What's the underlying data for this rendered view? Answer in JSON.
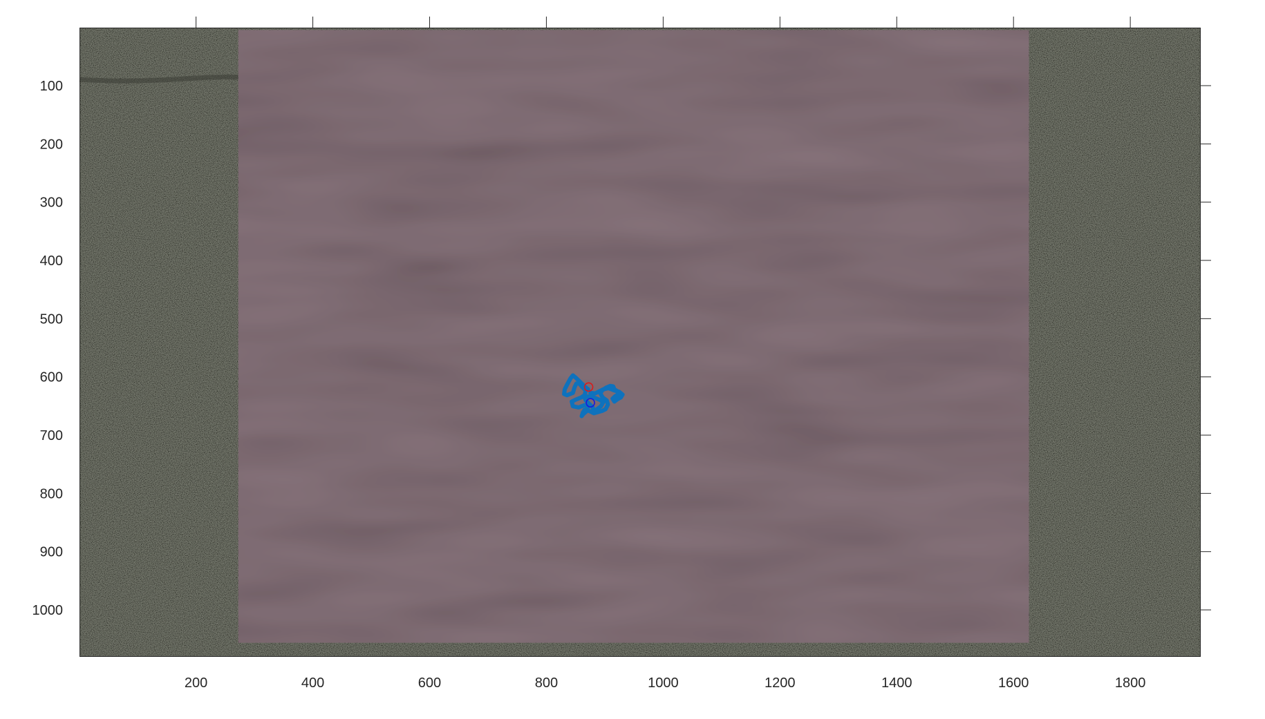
{
  "chart_data": {
    "type": "scatter",
    "title": "",
    "xlabel": "",
    "ylabel": "",
    "xlim": [
      1,
      1920
    ],
    "ylim": [
      1,
      1080
    ],
    "y_direction": "reversed",
    "x_ticks": [
      200,
      400,
      600,
      800,
      1000,
      1200,
      1400,
      1600,
      1800
    ],
    "y_ticks": [
      100,
      200,
      300,
      400,
      500,
      600,
      700,
      800,
      900,
      1000
    ],
    "grid": false,
    "legend": "none",
    "background_image": {
      "description": "top-down camera frame: pinkish arena sheet on gray-green floor",
      "floor_color": "#6b6f5f",
      "arena_color": "#9a808a",
      "arena_extent_x": [
        273,
        1627
      ],
      "arena_extent_y": [
        5,
        1057
      ]
    },
    "series": [
      {
        "style": "line",
        "color": "#0e72bd",
        "x": [
          872,
          866,
          858,
          851,
          846,
          842,
          836,
          832,
          831,
          836,
          846,
          849,
          852,
          856,
          862,
          868,
          866,
          860,
          850,
          844,
          846,
          856,
          866,
          872,
          870,
          864,
          861,
          863,
          866,
          874,
          882,
          880,
          874,
          868,
          866,
          872,
          882,
          892,
          898,
          894,
          886,
          880,
          882,
          889,
          896,
          902,
          906,
          904,
          897,
          893,
          896,
          903,
          910,
          915,
          917,
          922,
          924,
          918,
          914,
          917,
          922,
          928,
          931,
          925,
          917,
          907,
          898,
          892,
          884,
          876
        ],
        "y": [
          622,
          617,
          609,
          602,
          598,
          603,
          614,
          622,
          630,
          632,
          628,
          618,
          612,
          611,
          618,
          624,
          632,
          636,
          640,
          643,
          651,
          653,
          649,
          652,
          659,
          664,
          668,
          662,
          657,
          659,
          663,
          653,
          647,
          641,
          636,
          634,
          636,
          640,
          644,
          651,
          657,
          660,
          663,
          661,
          659,
          656,
          648,
          641,
          636,
          629,
          624,
          619,
          616,
          617,
          622,
          625,
          630,
          634,
          638,
          643,
          639,
          636,
          631,
          626,
          624,
          620,
          622,
          625,
          629,
          628
        ]
      },
      {
        "style": "marker",
        "marker": "circle",
        "color": "#d91c1c",
        "x": [
          873
        ],
        "y": [
          618
        ]
      },
      {
        "style": "marker",
        "marker": "circle",
        "color": "#1a1adc",
        "x": [
          876
        ],
        "y": [
          645
        ]
      }
    ]
  }
}
